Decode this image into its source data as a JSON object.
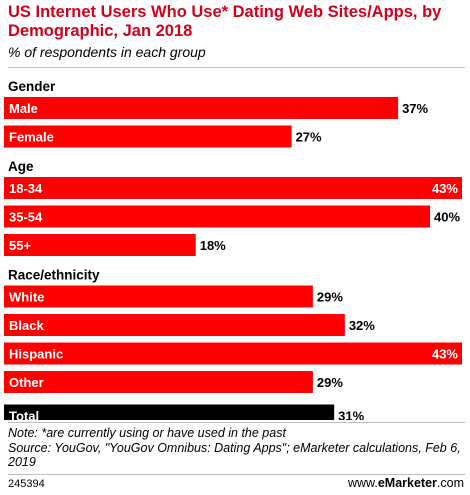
{
  "header": {
    "title": "US Internet Users Who Use* Dating Web Sites/Apps, by Demographic, Jan 2018",
    "subtitle": "% of respondents in each group"
  },
  "footer": {
    "note": "Note: *are currently using or have used in the past",
    "source": "Source: YouGov, \"YouGov Omnibus: Dating Apps\"; eMarketer calculations, Feb 6, 2019",
    "chart_id": "245394",
    "brand_prefix": "www.",
    "brand_name": "eMarketer",
    "brand_suffix": ".com"
  },
  "colors": {
    "bar": "#ff0000",
    "total_bar": "#000000",
    "title": "#d0021b"
  },
  "chart_data": {
    "type": "bar",
    "orientation": "horizontal",
    "unit": "%",
    "xlim": [
      0,
      43
    ],
    "grid": false,
    "groups": [
      {
        "name": "Gender",
        "items": [
          {
            "label": "Male",
            "value": 37
          },
          {
            "label": "Female",
            "value": 27
          }
        ]
      },
      {
        "name": "Age",
        "items": [
          {
            "label": "18-34",
            "value": 43
          },
          {
            "label": "35-54",
            "value": 40
          },
          {
            "label": "55+",
            "value": 18
          }
        ]
      },
      {
        "name": "Race/ethnicity",
        "items": [
          {
            "label": "White",
            "value": 29
          },
          {
            "label": "Black",
            "value": 32
          },
          {
            "label": "Hispanic",
            "value": 43
          },
          {
            "label": "Other",
            "value": 29
          }
        ]
      },
      {
        "name": "",
        "items": [
          {
            "label": "Total",
            "value": 31,
            "highlight": true
          }
        ]
      }
    ]
  }
}
